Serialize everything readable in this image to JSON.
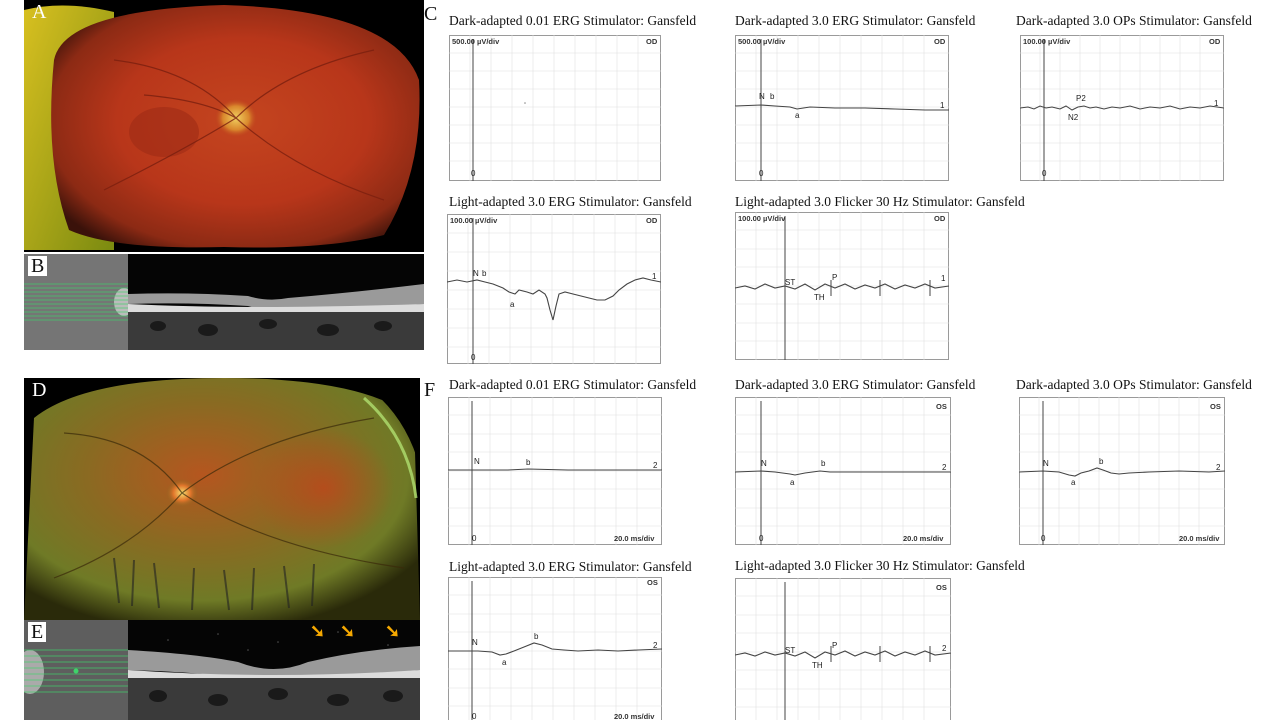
{
  "panel_letters": {
    "a": "A",
    "b": "B",
    "c": "C",
    "d": "D",
    "e": "E",
    "f": "F"
  },
  "od": {
    "eye": "OD",
    "trace_label": "1",
    "scale_500": "500.00 µV/div",
    "scale_100": "100.00 µV/div",
    "zero": "0",
    "titles": {
      "da001": "Dark-adapted 0.01 ERG Stimulator: Gansfeld",
      "da30": "Dark-adapted 3.0 ERG Stimulator: Gansfeld",
      "daops": "Dark-adapted 3.0 OPs Stimulator: Gansfeld",
      "la30": "Light-adapted 3.0 ERG Stimulator: Gansfeld",
      "flicker": "Light-adapted 3.0 Flicker 30 Hz Stimulator: Gansfeld"
    },
    "markers": {
      "n": "N",
      "a": "a",
      "b": "b",
      "p2": "P2",
      "n2": "N2",
      "st": "ST",
      "th": "TH",
      "p": "P"
    }
  },
  "os": {
    "eye": "OS",
    "trace_label": "2",
    "zero": "0",
    "time_scale": "20.0 ms/div",
    "titles": {
      "da001": "Dark-adapted 0.01 ERG Stimulator: Gansfeld",
      "da30": "Dark-adapted 3.0 ERG Stimulator: Gansfeld",
      "daops": "Dark-adapted 3.0 OPs Stimulator: Gansfeld",
      "la30": "Light-adapted 3.0 ERG Stimulator: Gansfeld",
      "flicker": "Light-adapted 3.0 Flicker 30 Hz Stimulator: Gansfeld"
    },
    "markers": {
      "n": "N",
      "a": "a",
      "b": "b",
      "st": "ST",
      "th": "TH",
      "p": "P"
    }
  },
  "colors": {
    "fundus_red": "#b8361a",
    "fundus_green": "#6f8a2a",
    "arrow": "#f5a800",
    "oct_scan_line": "#3fd36a"
  }
}
